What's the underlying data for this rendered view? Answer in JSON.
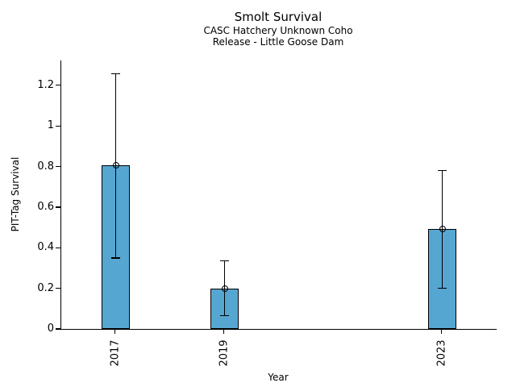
{
  "chart_data": {
    "type": "bar",
    "title": "Smolt Survival",
    "subtitle1": "CASC Hatchery Unknown Coho",
    "subtitle2": "Release - Little Goose Dam",
    "xlabel": "Year",
    "ylabel": "PIT-Tag Survival",
    "categories": [
      "2017",
      "2019",
      "2023"
    ],
    "x": [
      2017,
      2019,
      2023
    ],
    "values": [
      0.805,
      0.197,
      0.493
    ],
    "error_low": [
      0.35,
      0.065,
      0.2
    ],
    "error_high": [
      1.257,
      0.335,
      0.78
    ],
    "xlim": [
      2016,
      2024
    ],
    "ylim": [
      0,
      1.3225
    ],
    "yticks": [
      0,
      0.2,
      0.4,
      0.6,
      0.8,
      1,
      1.2
    ],
    "ytick_labels": [
      "0",
      "0.2",
      "0.4",
      "0.6",
      "0.8",
      "1",
      "1.2"
    ],
    "grid": false,
    "legend": null,
    "marker": "open-circle",
    "bar_color": "#56A6D2",
    "bar_edge_color": "#000000",
    "errorbar_color": "#000000",
    "bar_width_years": 0.52
  }
}
